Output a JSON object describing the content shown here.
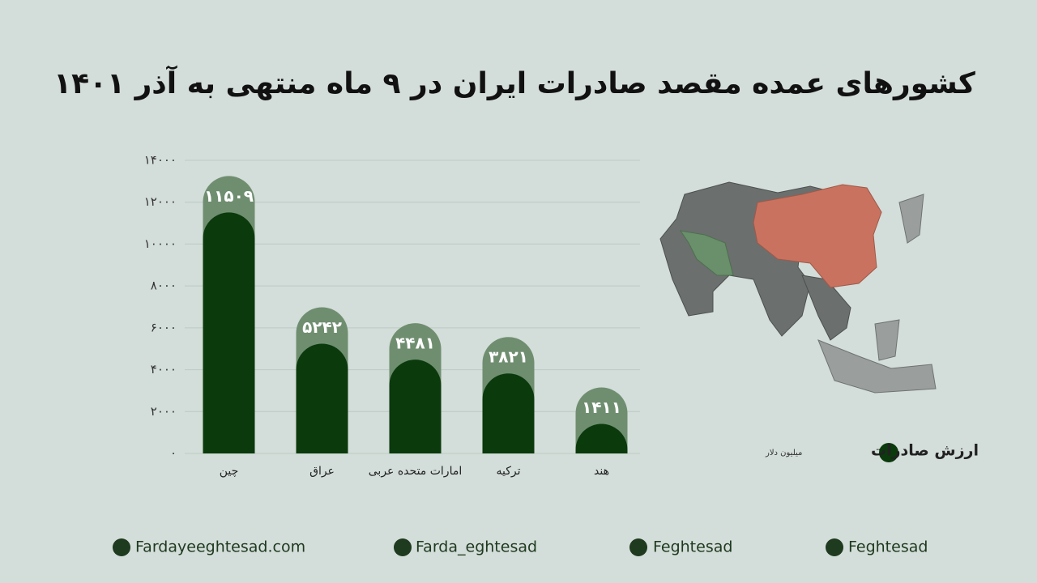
{
  "chart_data": {
    "type": "bar",
    "title": "کشورهای عمده مقصد صادرات ایران در ۹ ماه منتهی به آذر ۱۴۰۱",
    "categories": [
      "چین",
      "عراق",
      "امارات متحده عربی",
      "ترکیه",
      "هند"
    ],
    "series": [
      {
        "name": "ارزش صادرات",
        "color": "#0b3a0c",
        "values": [
          11509,
          5242,
          4481,
          3821,
          1411
        ],
        "value_labels": [
          "۱۱۵۰۹",
          "۵۲۴۲",
          "۴۴۸۱",
          "۳۸۲۱",
          "۱۴۱۱"
        ]
      }
    ],
    "legend_unit": "میلیون دلار",
    "ylim": [
      0,
      14000
    ],
    "yticks": [
      {
        "value": 0,
        "label": "۰"
      },
      {
        "value": 2000,
        "label": "۲۰۰۰"
      },
      {
        "value": 4000,
        "label": "۴۰۰۰"
      },
      {
        "value": 6000,
        "label": "۶۰۰۰"
      },
      {
        "value": 8000,
        "label": "۸۰۰۰"
      },
      {
        "value": 10000,
        "label": "۱۰۰۰۰"
      },
      {
        "value": 12000,
        "label": "۱۲۰۰۰"
      },
      {
        "value": 14000,
        "label": "۱۴۰۰۰"
      }
    ],
    "grid": true
  },
  "footer": {
    "links": [
      "Fardayeeghtesad.com",
      "Farda_eghtesad",
      "Feghtesad",
      "Feghtesad"
    ]
  }
}
